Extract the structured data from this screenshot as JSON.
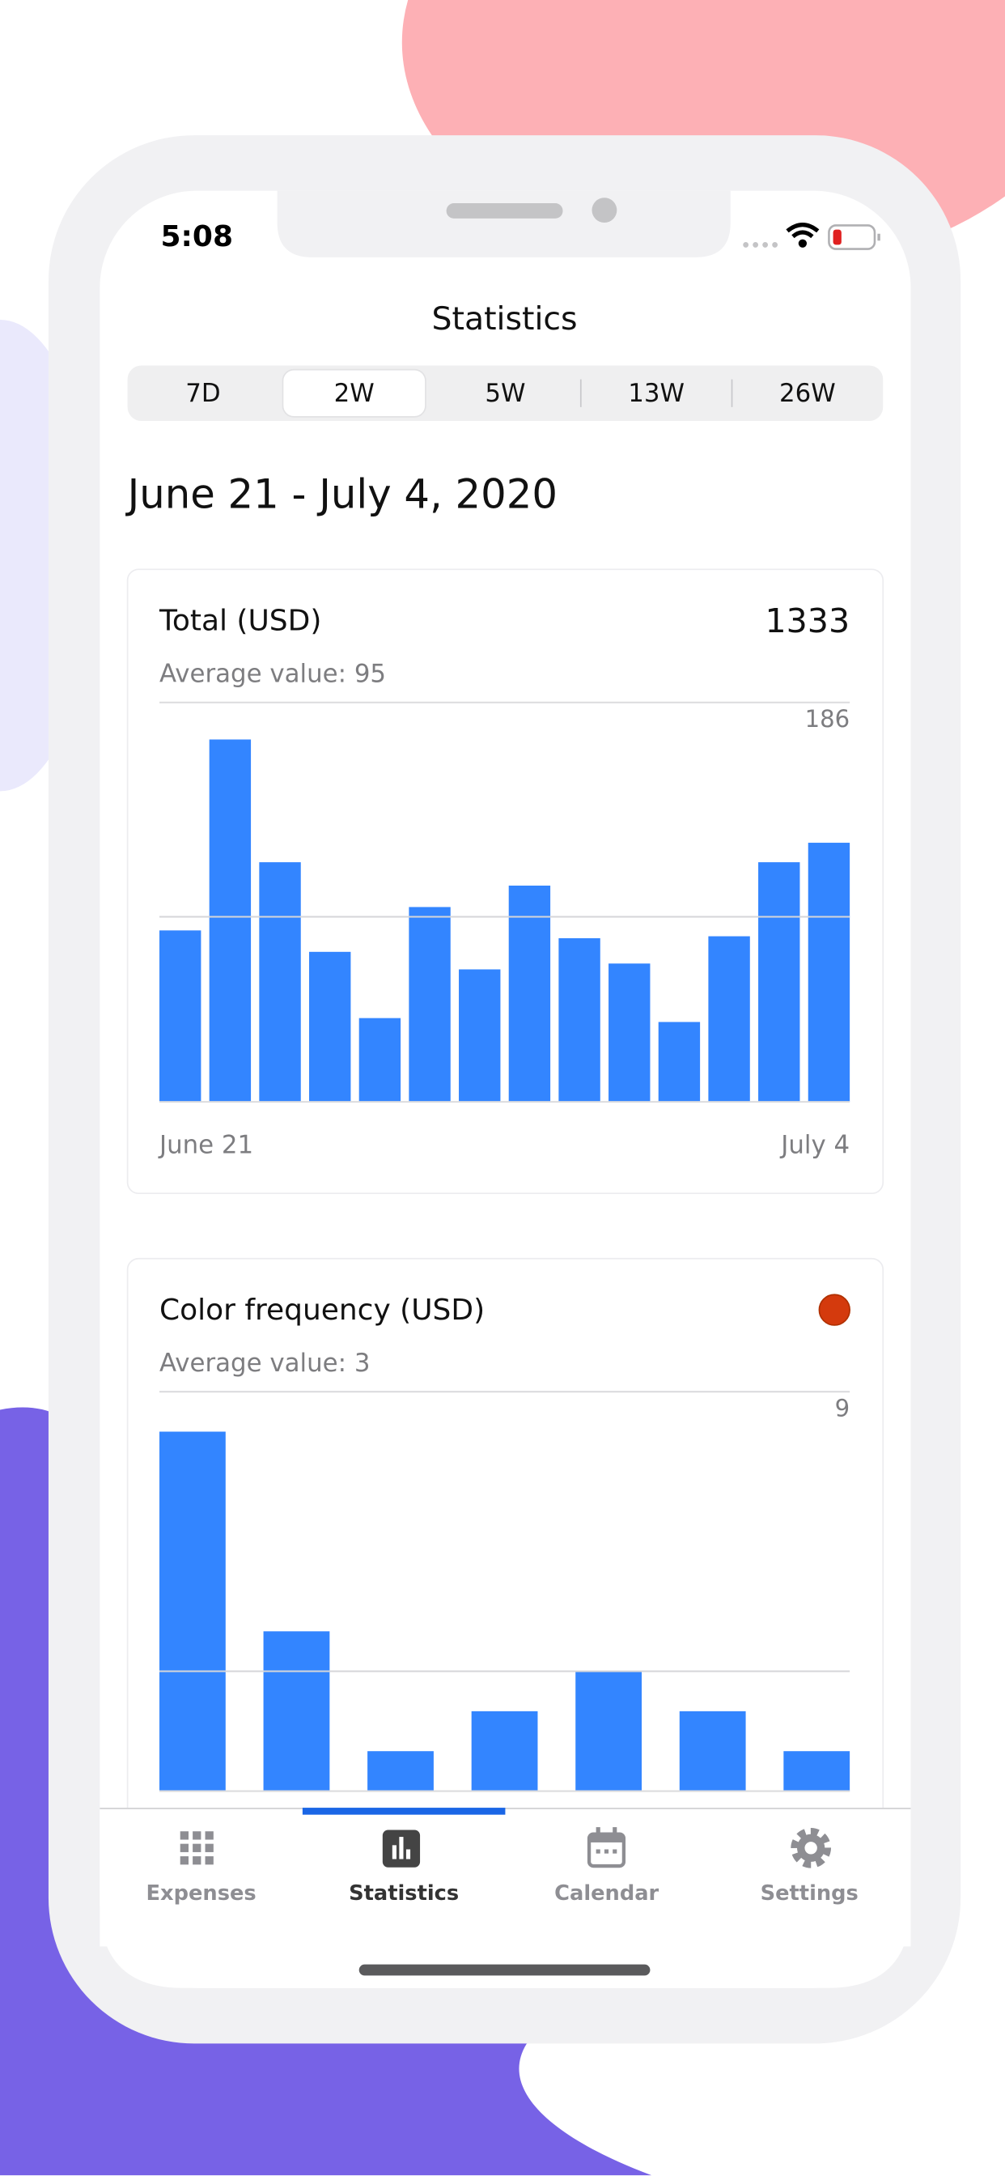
{
  "status_bar": {
    "time": "5:08"
  },
  "header": {
    "title": "Statistics"
  },
  "segments": {
    "options": [
      "7D",
      "2W",
      "5W",
      "13W",
      "26W"
    ],
    "selected": 1
  },
  "date_range": "June 21 - July 4, 2020",
  "cards": [
    {
      "title": "Total (USD)",
      "total": 1333,
      "average": {
        "label": "Average value:",
        "value": 95
      },
      "chart": {
        "type": "bar",
        "color": "#3385ff",
        "values": [
          88,
          186,
          123,
          77,
          43,
          100,
          68,
          111,
          84,
          71,
          41,
          85,
          123,
          133
        ],
        "ylim": [
          0,
          205
        ],
        "max_label": 186,
        "x_start": "June 21",
        "x_end": "July 4"
      }
    },
    {
      "title": "Color frequency (USD)",
      "swatch_color": "#d43a0d",
      "average": {
        "label": "Average value:",
        "value": 3
      },
      "chart": {
        "type": "bar",
        "color": "#3385ff",
        "values": [
          9,
          4,
          1,
          2,
          3,
          2,
          1
        ],
        "ylim": [
          0,
          10
        ],
        "max_label": 9
      }
    }
  ],
  "tab_bar": {
    "tabs": [
      "Expenses",
      "Statistics",
      "Calendar",
      "Settings"
    ],
    "selected": 1
  }
}
